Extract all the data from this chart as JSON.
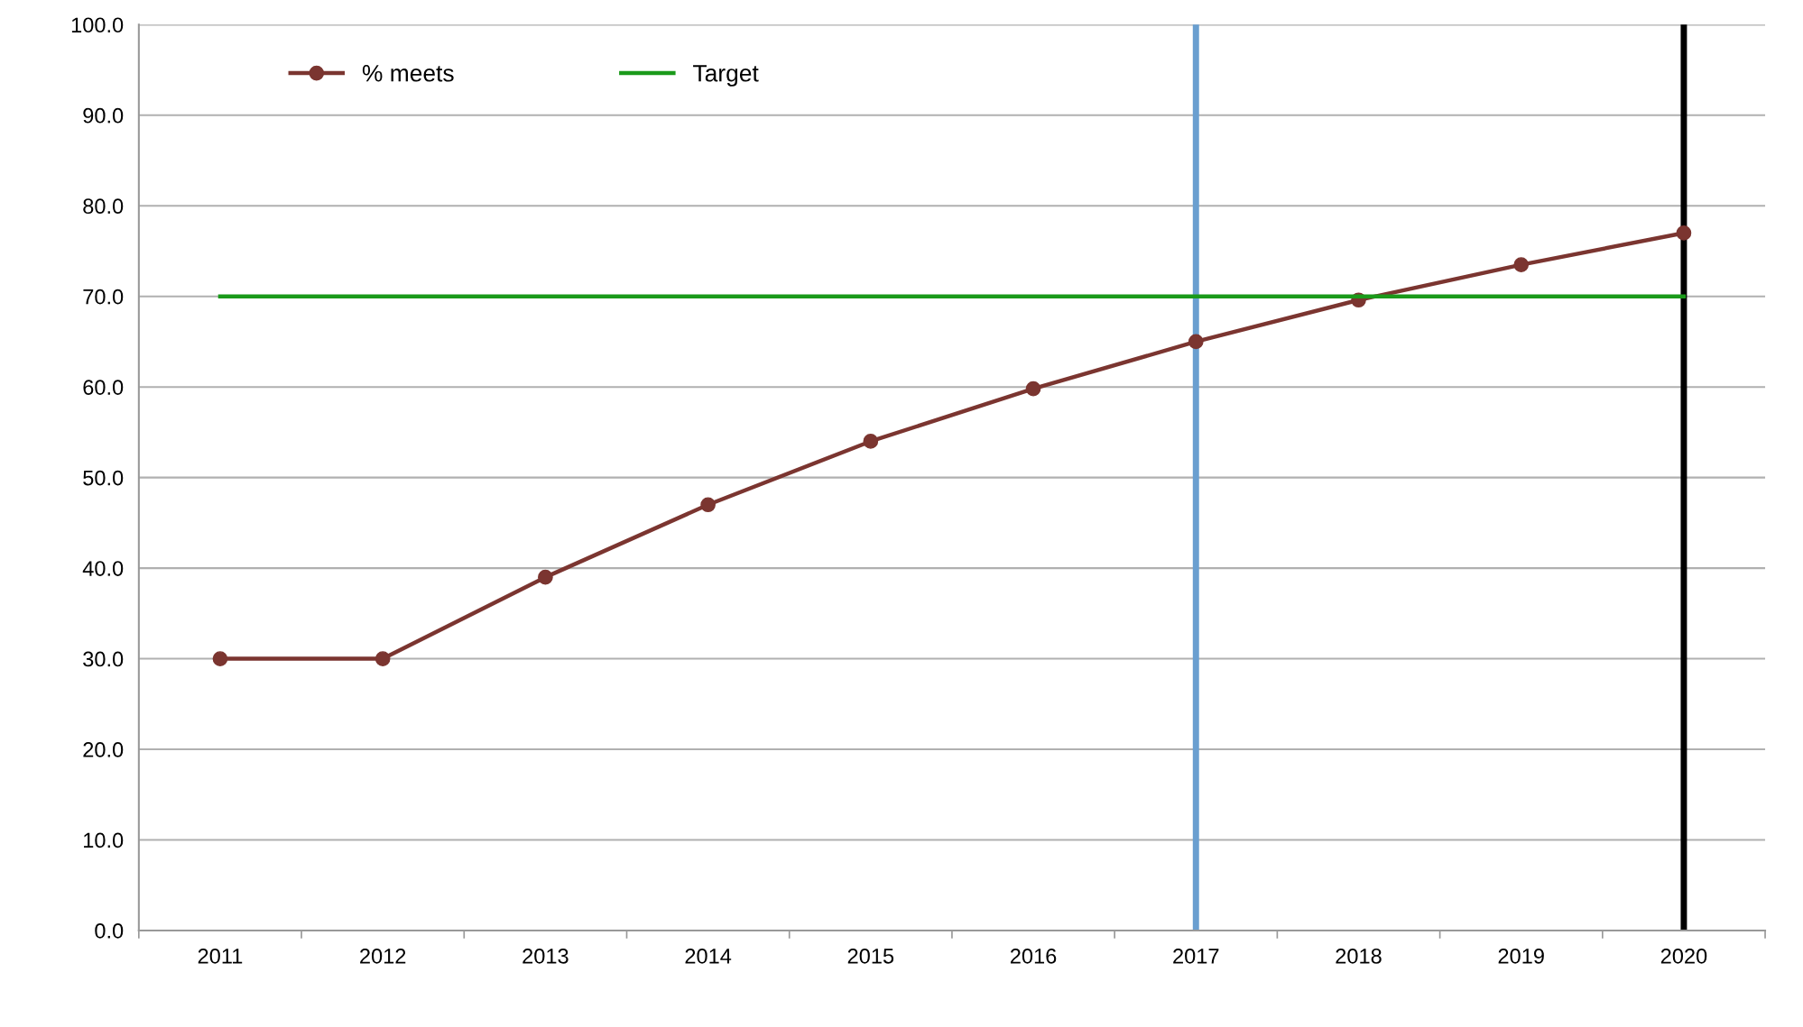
{
  "chart_data": {
    "type": "line",
    "categories": [
      "2011",
      "2012",
      "2013",
      "2014",
      "2015",
      "2016",
      "2017",
      "2018",
      "2019",
      "2020"
    ],
    "series": [
      {
        "name": "% meets",
        "color": "#7b3530",
        "marker": "circle",
        "values": [
          30,
          30,
          39,
          47,
          54,
          59.8,
          65,
          69.6,
          73.5,
          77
        ]
      },
      {
        "name": "Target",
        "color": "#1a9a1a",
        "marker": "none",
        "values": [
          70,
          70,
          70,
          70,
          70,
          70,
          70,
          70,
          70,
          70
        ]
      }
    ],
    "ylim": [
      0,
      100
    ],
    "yticks": [
      {
        "value": 0,
        "label": "0.0"
      },
      {
        "value": 10,
        "label": "10.0"
      },
      {
        "value": 20,
        "label": "20.0"
      },
      {
        "value": 30,
        "label": "30.0"
      },
      {
        "value": 40,
        "label": "40.0"
      },
      {
        "value": 50,
        "label": "50.0"
      },
      {
        "value": 60,
        "label": "60.0"
      },
      {
        "value": 70,
        "label": "70.0"
      },
      {
        "value": 80,
        "label": "80.0"
      },
      {
        "value": 90,
        "label": "90.0"
      },
      {
        "value": 100,
        "label": "100.0"
      }
    ],
    "ref_lines": [
      {
        "axis": "x",
        "value": "2017",
        "color": "#6a9fd0"
      },
      {
        "axis": "x",
        "value": "2020",
        "color": "#000000"
      }
    ],
    "grid": "y",
    "legend": "top left"
  }
}
